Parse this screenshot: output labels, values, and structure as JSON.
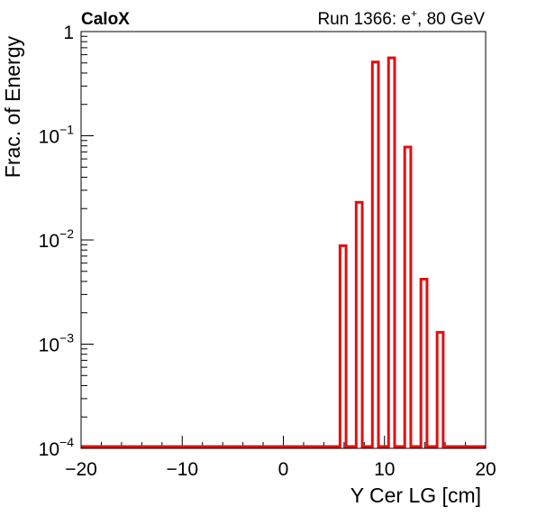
{
  "chart_data": {
    "type": "bar",
    "label": "CaloX",
    "run_info": {
      "run": "Run 1366",
      "particle_base": "e",
      "particle_charge": "+",
      "energy": "80 GeV"
    },
    "xlabel": "Y Cer LG [cm]",
    "ylabel": "Frac. of Energy",
    "xlim": [
      -20,
      20
    ],
    "ylim": [
      0.0001,
      1
    ],
    "yscale": "log",
    "grid": false,
    "line_color": "#e01010",
    "x_ticks": [
      {
        "value": -20,
        "label": "−20"
      },
      {
        "value": -10,
        "label": "−10"
      },
      {
        "value": 0,
        "label": "0"
      },
      {
        "value": 10,
        "label": "10"
      },
      {
        "value": 20,
        "label": "20"
      }
    ],
    "y_ticks": [
      {
        "value": 1,
        "base": "1",
        "exp": ""
      },
      {
        "value": 0.1,
        "base": "10",
        "exp": "−1"
      },
      {
        "value": 0.01,
        "base": "10",
        "exp": "−2"
      },
      {
        "value": 0.001,
        "base": "10",
        "exp": "−3"
      },
      {
        "value": 0.0001,
        "base": "10",
        "exp": "−4"
      }
    ],
    "bars": [
      {
        "x0": 5.6,
        "x1": 6.2,
        "value": 0.0088
      },
      {
        "x0": 7.2,
        "x1": 7.8,
        "value": 0.023
      },
      {
        "x0": 8.8,
        "x1": 9.4,
        "value": 0.51
      },
      {
        "x0": 10.4,
        "x1": 11.0,
        "value": 0.56
      },
      {
        "x0": 12.0,
        "x1": 12.6,
        "value": 0.078
      },
      {
        "x0": 13.6,
        "x1": 14.2,
        "value": 0.0042
      },
      {
        "x0": 15.2,
        "x1": 15.8,
        "value": 0.0013
      }
    ]
  }
}
